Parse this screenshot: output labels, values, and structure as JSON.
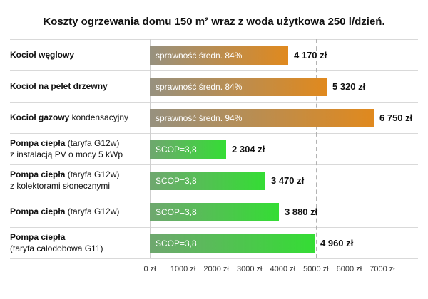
{
  "title": "Koszty ogrzewania domu 150 m² wraz z woda użytkowa 250 l/dzień.",
  "chart_data": {
    "type": "bar",
    "orientation": "horizontal",
    "title": "Koszty ogrzewania domu 150 m² wraz z woda użytkowa 250 l/dzień.",
    "unit": "zł",
    "xlim": [
      0,
      7000
    ],
    "x_tick_values": [
      0,
      1000,
      2000,
      3000,
      4000,
      5000,
      6000,
      7000
    ],
    "x_ticks": [
      "0 zł",
      "1000 zł",
      "2000 zł",
      "3000 zł",
      "4000 zł",
      "5000 zł",
      "6000 zł",
      "7000 zł"
    ],
    "reference_line": 5000,
    "grid": "row-separators",
    "legend": "none",
    "colors": {
      "fossil": [
        "#97917f",
        "#e0891e"
      ],
      "heatpump": [
        "#6fa76f",
        "#34dd34"
      ],
      "separator": "#d9d9d9",
      "reference_dash": "#b3b3b3",
      "value_text": "#111111",
      "bar_text": "#ffffff"
    },
    "rows": [
      {
        "label_lines": [
          {
            "bold": "Kocioł węglowy",
            "regular": ""
          }
        ],
        "bar_label": "sprawność średn. 84%",
        "value": 4170,
        "value_label": "4 170 zł",
        "group": "fossil"
      },
      {
        "label_lines": [
          {
            "bold": "Kocioł na pelet drzewny",
            "regular": ""
          }
        ],
        "bar_label": "sprawność średn. 84%",
        "value": 5320,
        "value_label": "5 320 zł",
        "group": "fossil"
      },
      {
        "label_lines": [
          {
            "bold": "Kocioł gazowy",
            "regular": " kondensacyjny"
          }
        ],
        "bar_label": "sprawność średn. 94%",
        "value": 6750,
        "value_label": "6 750 zł",
        "group": "fossil"
      },
      {
        "label_lines": [
          {
            "bold": "Pompa ciepła",
            "regular": " (taryfa G12w)"
          },
          {
            "bold": "",
            "regular": "z instalacją PV o mocy 5 kWp"
          }
        ],
        "bar_label": "SCOP=3,8",
        "value": 2304,
        "value_label": "2 304 zł",
        "group": "heatpump"
      },
      {
        "label_lines": [
          {
            "bold": "Pompa ciepła",
            "regular": " (taryfa G12w)"
          },
          {
            "bold": "",
            "regular": "z kolektorami słonecznymi"
          }
        ],
        "bar_label": "SCOP=3,8",
        "value": 3470,
        "value_label": "3 470 zł",
        "group": "heatpump"
      },
      {
        "label_lines": [
          {
            "bold": "Pompa ciepła",
            "regular": " (taryfa G12w)"
          }
        ],
        "bar_label": "SCOP=3,8",
        "value": 3880,
        "value_label": "3 880 zł",
        "group": "heatpump"
      },
      {
        "label_lines": [
          {
            "bold": "Pompa ciepła",
            "regular": ""
          },
          {
            "bold": "",
            "regular": "(taryfa całodobowa G11)"
          }
        ],
        "bar_label": "SCOP=3,8",
        "value": 4960,
        "value_label": "4 960 zł",
        "group": "heatpump"
      }
    ]
  }
}
